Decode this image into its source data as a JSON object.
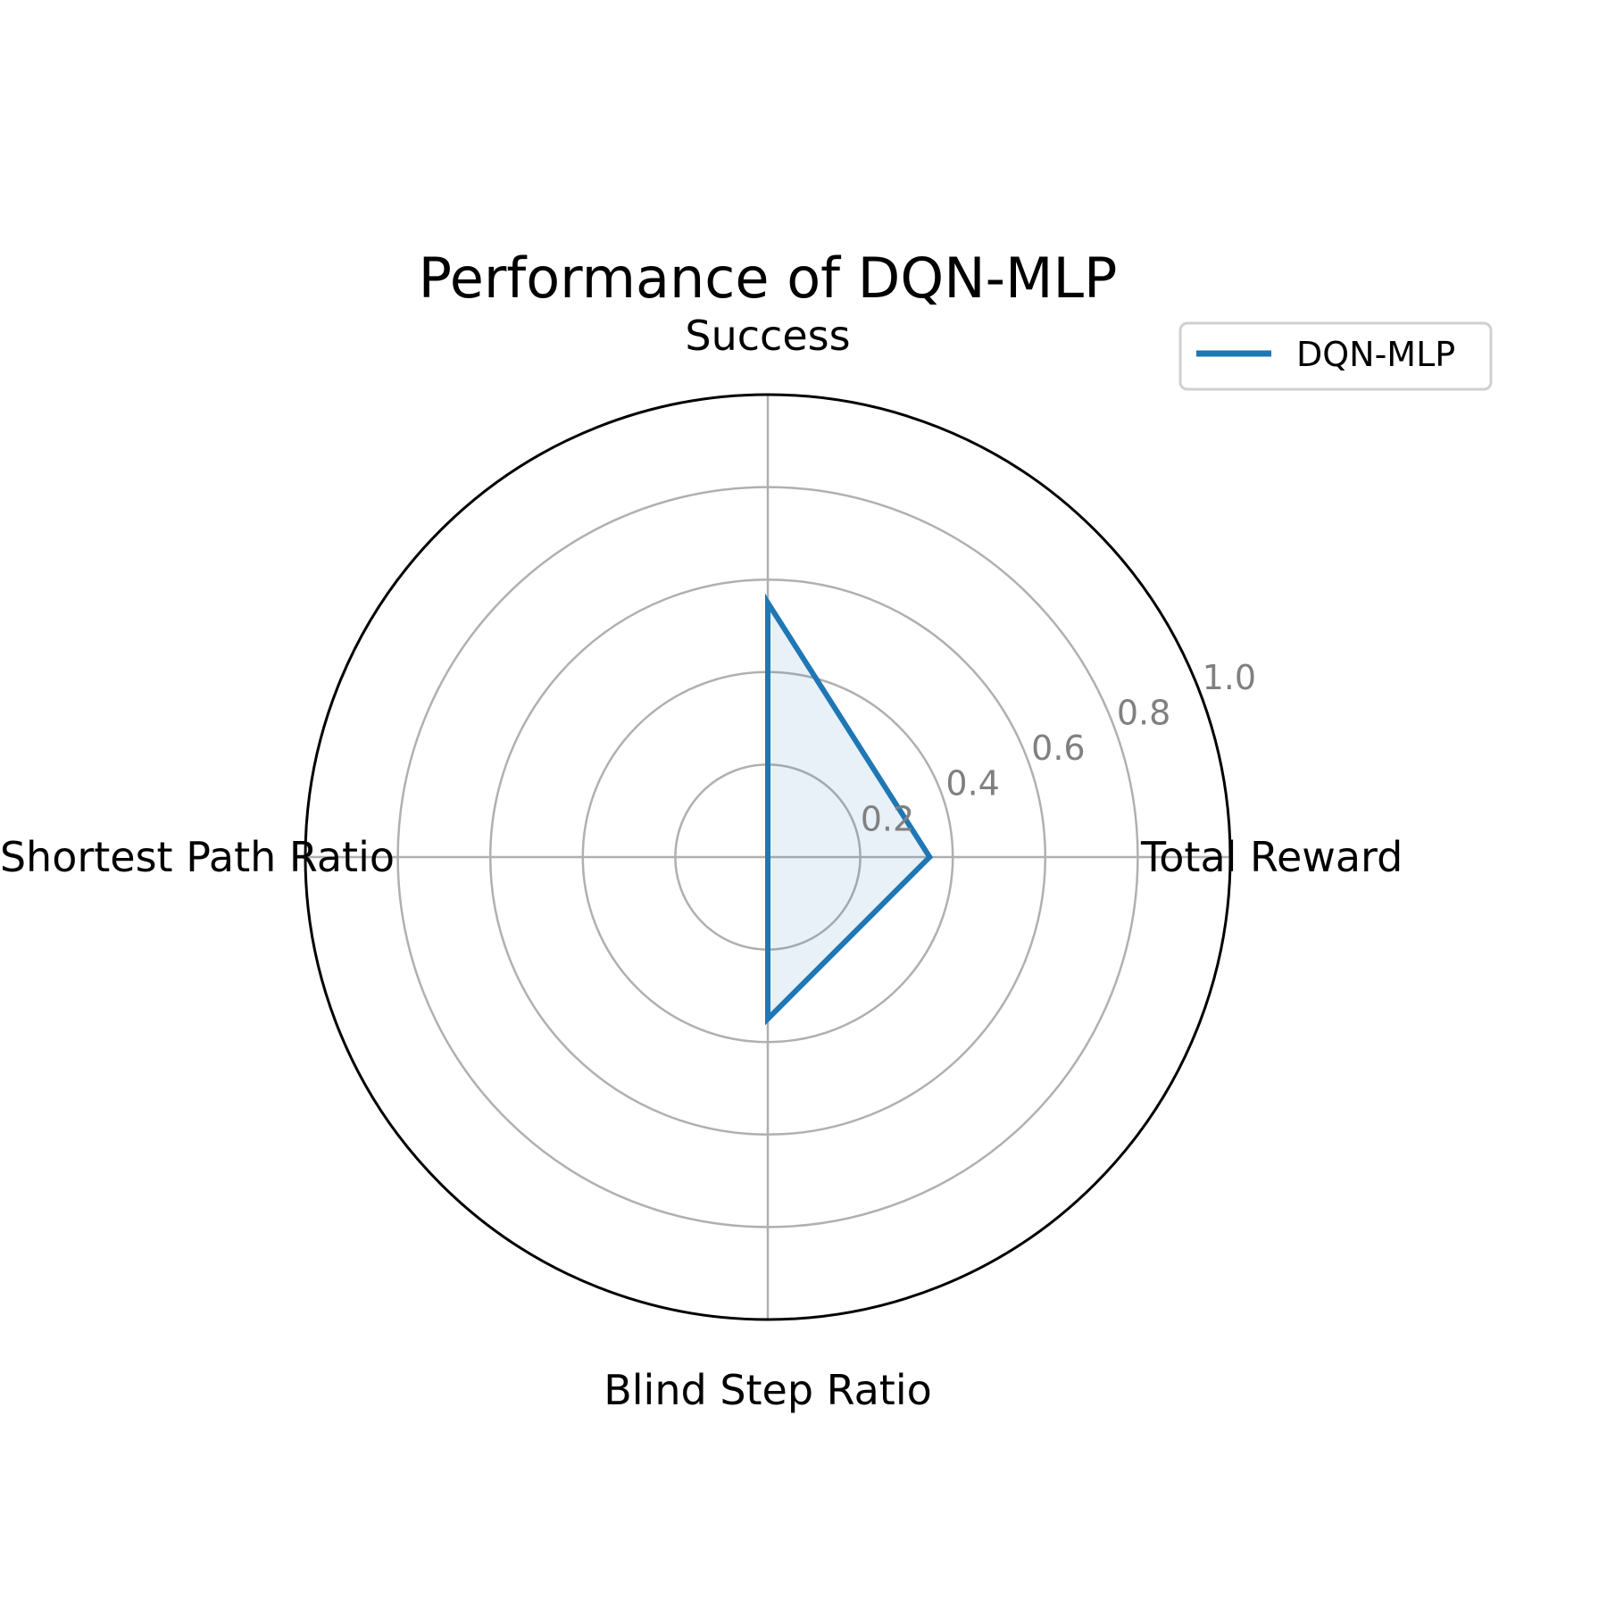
{
  "chart_data": {
    "type": "radar",
    "title": "Performance of DQN-MLP",
    "axes": [
      "Success",
      "Total Reward",
      "Blind Step Ratio",
      "Shortest Path Ratio"
    ],
    "rlim": [
      0,
      1.0
    ],
    "r_ticks": [
      0.2,
      0.4,
      0.6,
      0.8,
      1.0
    ],
    "r_tick_labels": [
      "0.2",
      "0.4",
      "0.6",
      "0.8",
      "1.0"
    ],
    "grid": true,
    "legend_position": "top-right",
    "series": [
      {
        "name": "DQN-MLP",
        "values": [
          0.55,
          0.35,
          0.35,
          0.0
        ],
        "color": "#1f77b4",
        "fill_color": "#1f77b4",
        "fill_opacity": 0.1
      }
    ],
    "grid_color": "#b0b0b0",
    "frame_color": "#000000"
  }
}
